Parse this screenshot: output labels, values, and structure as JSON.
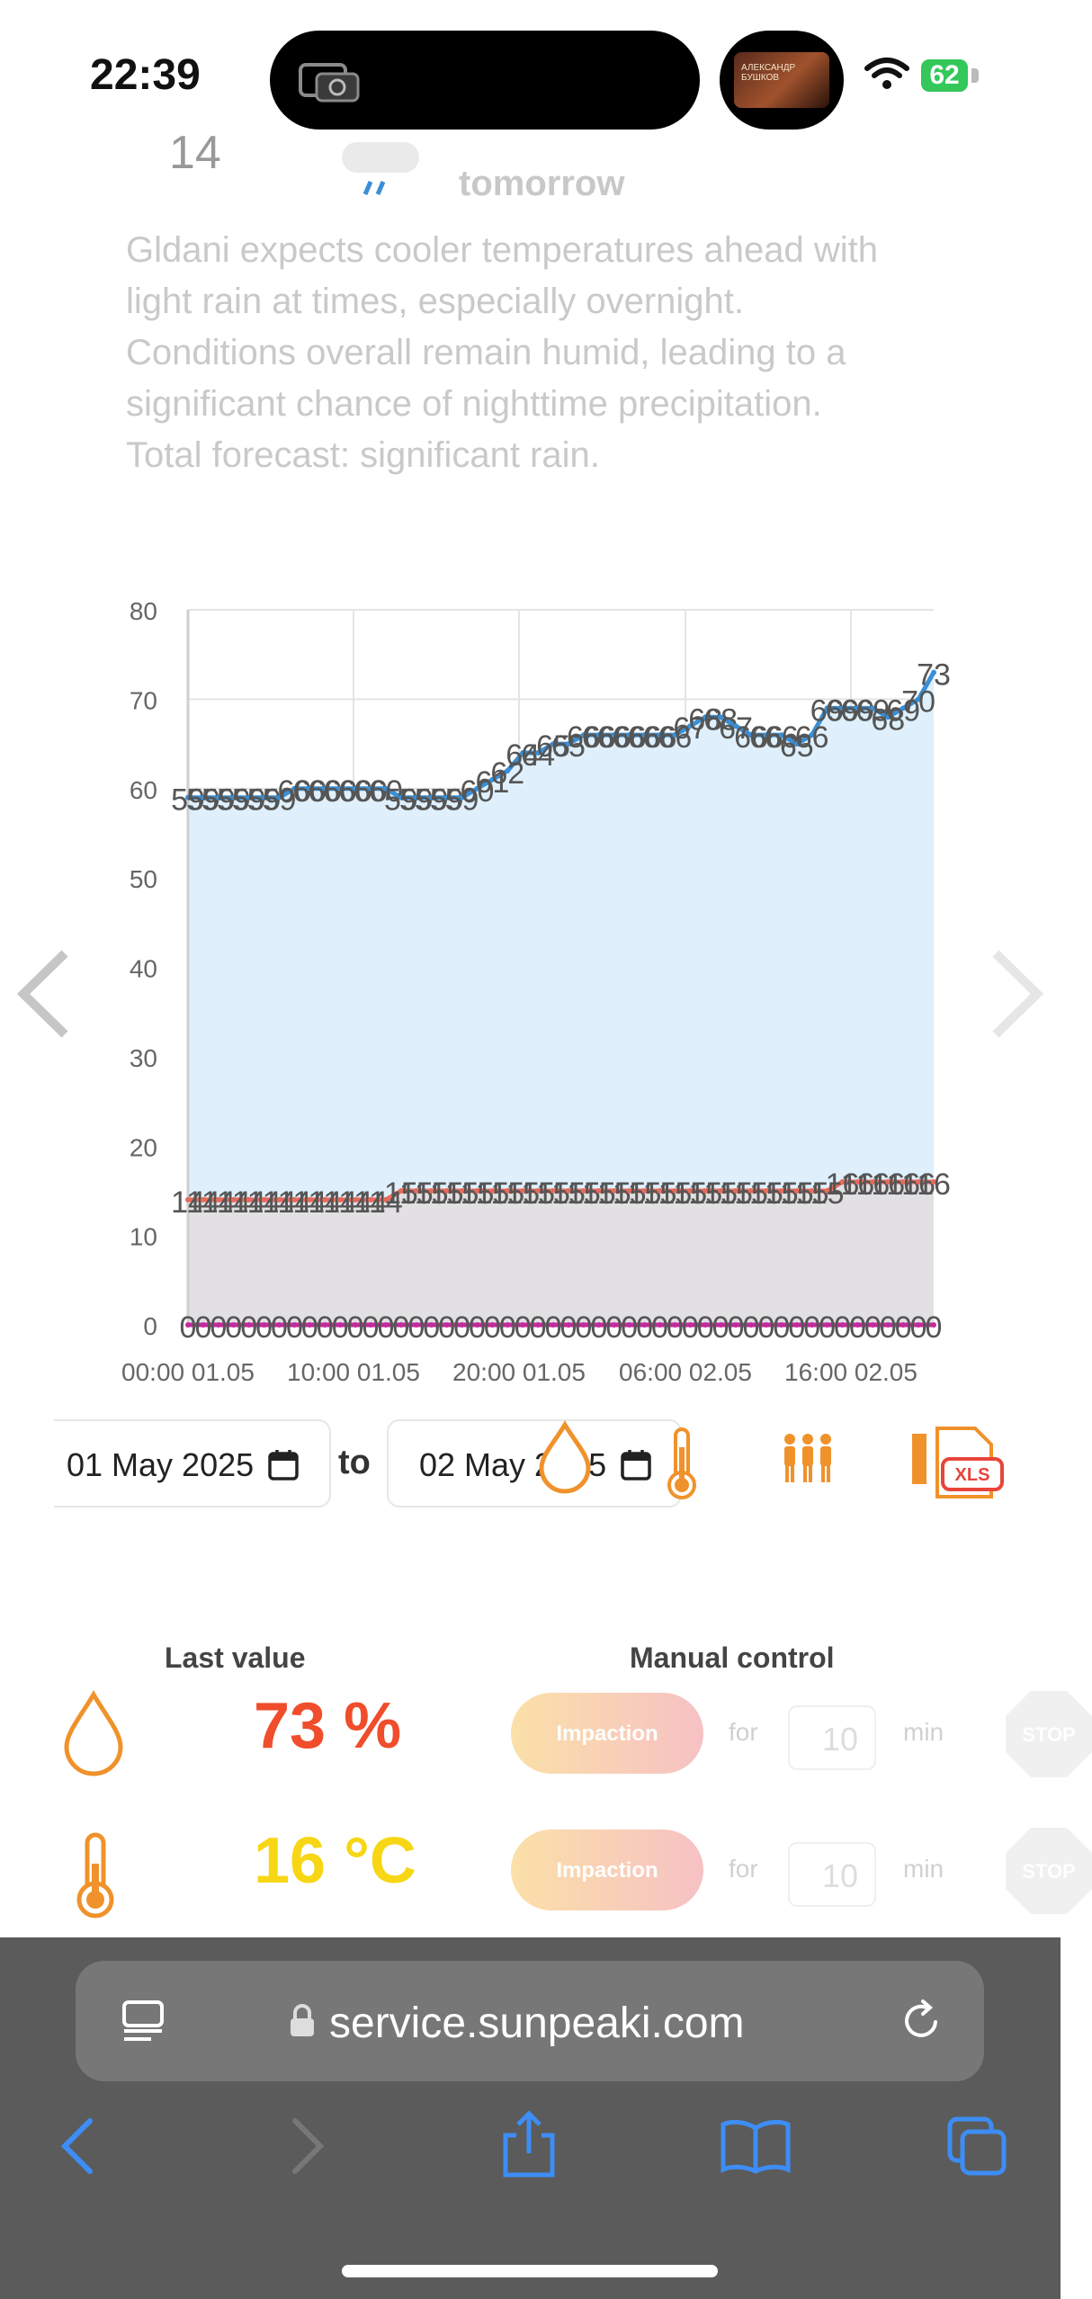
{
  "status": {
    "time": "22:39",
    "battery": "62"
  },
  "media": {
    "thumb_text": "АЛЕКСАНДР БУШКОВ"
  },
  "forecast": {
    "partial_number": "14",
    "tomorrow_label": "tomorrow",
    "text": "Gldani expects cooler temperatures ahead with light rain at times, especially overnight. Conditions overall remain humid, leading to a significant chance of nighttime precipitation. Total forecast: significant rain."
  },
  "chart_data": {
    "type": "area",
    "ylim": [
      0,
      80
    ],
    "yticks": [
      "0",
      "10",
      "20",
      "30",
      "40",
      "50",
      "60",
      "70",
      "80"
    ],
    "xticks": [
      "00:00 01.05",
      "10:00 01.05",
      "20:00 01.05",
      "06:00 02.05",
      "16:00 02.05"
    ],
    "series": [
      {
        "values": [
          59,
          59,
          59,
          59,
          59,
          59,
          59,
          60,
          60,
          60,
          60,
          60,
          60,
          60,
          59,
          59,
          59,
          59,
          59,
          60,
          61,
          62,
          64,
          64,
          65,
          65,
          66,
          66,
          66,
          66,
          66,
          66,
          66,
          67,
          68,
          68,
          67,
          66,
          66,
          66,
          65,
          66,
          69,
          69,
          69,
          69,
          68,
          69,
          70,
          73
        ],
        "color": "#3a8fd6"
      },
      {
        "values": [
          14,
          14,
          14,
          14,
          14,
          14,
          14,
          14,
          14,
          14,
          14,
          14,
          14,
          14,
          15,
          15,
          15,
          15,
          15,
          15,
          15,
          15,
          15,
          15,
          15,
          15,
          15,
          15,
          15,
          15,
          15,
          15,
          15,
          15,
          15,
          15,
          15,
          15,
          15,
          15,
          15,
          15,
          15,
          16,
          16,
          16,
          16,
          16,
          16,
          16
        ],
        "color": "#e86a5a"
      },
      {
        "values": [
          0,
          0,
          0,
          0,
          0,
          0,
          0,
          0,
          0,
          0,
          0,
          0,
          0,
          0,
          0,
          0,
          0,
          0,
          0,
          0,
          0,
          0,
          0,
          0,
          0,
          0,
          0,
          0,
          0,
          0,
          0,
          0,
          0,
          0,
          0,
          0,
          0,
          0,
          0,
          0,
          0,
          0,
          0,
          0,
          0,
          0,
          0,
          0,
          0,
          0
        ],
        "color": "#c32a9c"
      }
    ],
    "grid": true
  },
  "controls": {
    "date_from": "01 May 2025",
    "to_label": "to",
    "date_to": "02 May 2025"
  },
  "values": {
    "last_value_header": "Last value",
    "manual_control_header": "Manual control",
    "humidity": "73 %",
    "temperature": "16 °C",
    "impaction_label": "Impaction",
    "for_label": "for",
    "min_value": "10",
    "min_label": "min",
    "stop_label": "STOP"
  },
  "browser": {
    "url": "service.sunpeaki.com"
  }
}
